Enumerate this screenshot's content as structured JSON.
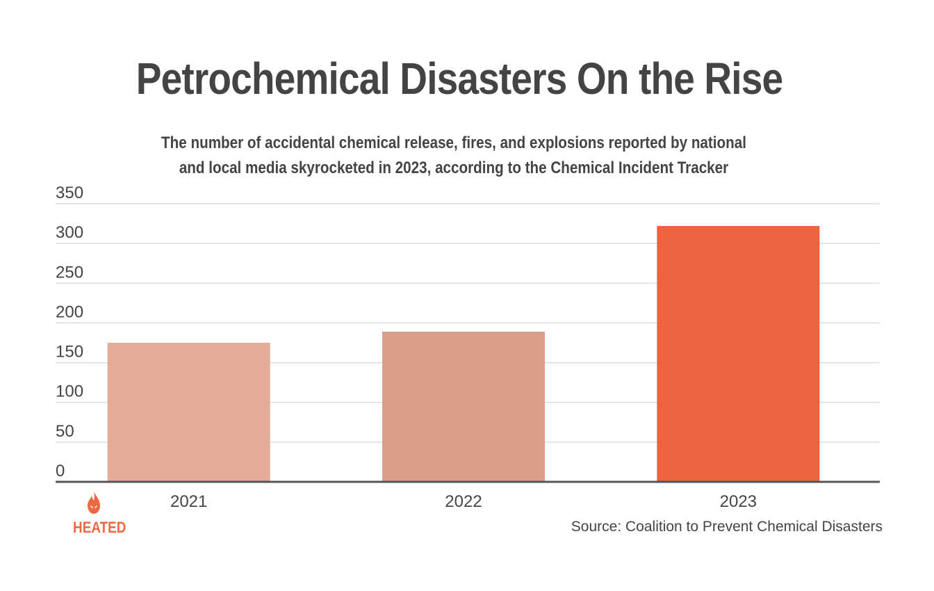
{
  "header": {
    "title": "Petrochemical Disasters On the Rise",
    "subtitle_line1": "The number of accidental chemical release, fires, and explosions reported by national",
    "subtitle_line2": "and local media skyrocketed in 2023, according to the Chemical Incident Tracker"
  },
  "footer": {
    "source": "Source: Coalition to Prevent Chemical Disasters",
    "logo_text": "HEATED",
    "logo_icon": "flame-icon"
  },
  "colors": {
    "accent": "#ec6a42",
    "bar_2021": "#e4ac98",
    "bar_2022": "#d99f8a",
    "bar_2023": "#eb633f",
    "grid": "#dcdcdc",
    "axis": "#555555"
  },
  "chart_data": {
    "type": "bar",
    "title": "Petrochemical Disasters On the Rise",
    "subtitle": "The number of accidental chemical release, fires, and explosions reported by national and local media skyrocketed in 2023, according to the Chemical Incident Tracker",
    "xlabel": "",
    "ylabel": "",
    "categories": [
      "2021",
      "2022",
      "2023"
    ],
    "values": [
      175,
      189,
      322
    ],
    "ylim": [
      0,
      350
    ],
    "yticks": [
      0,
      50,
      100,
      150,
      200,
      250,
      300,
      350
    ],
    "grid": true,
    "legend": "none"
  }
}
